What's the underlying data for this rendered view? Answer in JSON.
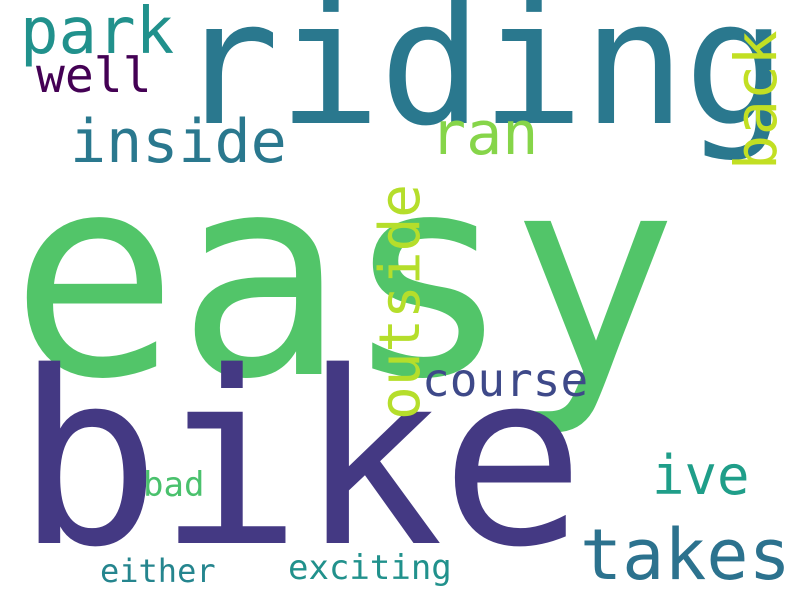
{
  "word_cloud": {
    "words": {
      "easy": {
        "text": "easy",
        "color": "#52c569"
      },
      "bike": {
        "text": "bike",
        "color": "#443983"
      },
      "riding": {
        "text": "riding",
        "color": "#2a788e"
      },
      "park": {
        "text": "park",
        "color": "#21918c"
      },
      "well": {
        "text": "well",
        "color": "#440154"
      },
      "inside": {
        "text": "inside",
        "color": "#2a788e"
      },
      "ran": {
        "text": "ran",
        "color": "#86d549"
      },
      "back": {
        "text": "back",
        "color": "#c2df23"
      },
      "outside": {
        "text": "outside",
        "color": "#b5de2b"
      },
      "course": {
        "text": "course",
        "color": "#3e4989"
      },
      "ive": {
        "text": "ive",
        "color": "#1f9e89"
      },
      "takes": {
        "text": "takes",
        "color": "#2c728e"
      },
      "bad": {
        "text": "bad",
        "color": "#4ac16d"
      },
      "either": {
        "text": "either",
        "color": "#25858e"
      },
      "exciting": {
        "text": "exciting",
        "color": "#21918c"
      }
    }
  }
}
